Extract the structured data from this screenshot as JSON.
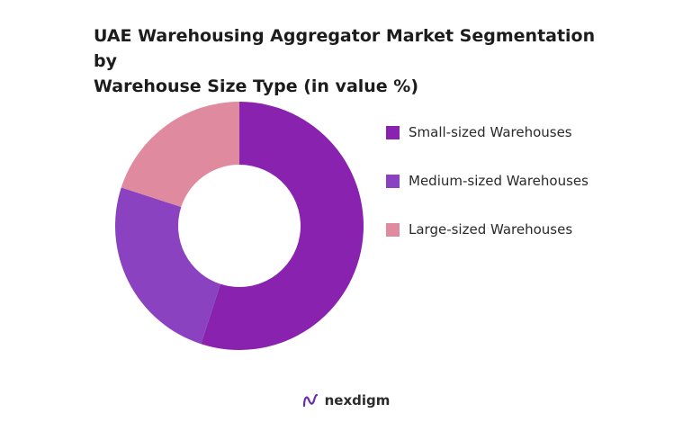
{
  "chart_data": {
    "type": "pie",
    "title_lines": [
      "UAE Warehousing Aggregator Market Segmentation by",
      "Warehouse Size Type (in value %)"
    ],
    "donut": true,
    "categories": [
      "Small-sized Warehouses",
      "Medium-sized Warehouses",
      "Large-sized Warehouses"
    ],
    "values": [
      55,
      25,
      20
    ],
    "colors": [
      "#8a22b0",
      "#8b42c1",
      "#e08aa0"
    ],
    "legend_position": "right"
  },
  "branding": {
    "logo_text": "nexdigm",
    "logo_icon": "nexdigm-logo-icon",
    "logo_color": "#6a2bb0"
  }
}
